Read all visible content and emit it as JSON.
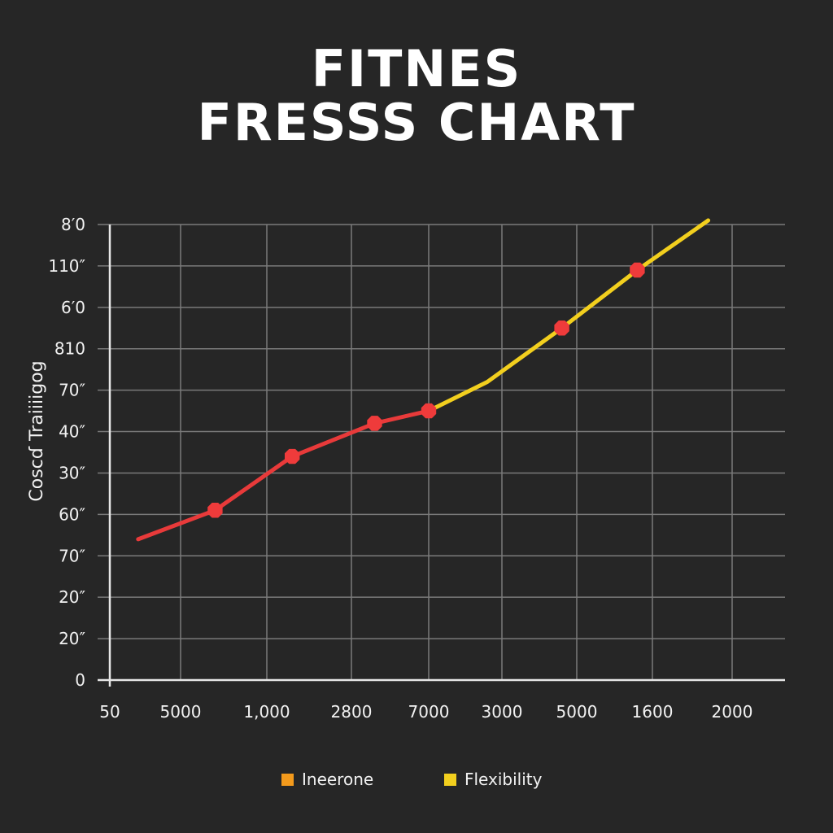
{
  "chart_data": {
    "type": "line",
    "title_line1": "FITNES",
    "title_line2": "FRESSS CHART",
    "ylabel": "Coscɗ Traiiiigog",
    "xlabel": "",
    "y_tick_labels": [
      "0",
      "20″",
      "20″",
      "70″",
      "60″",
      "30″",
      "40″",
      "70″",
      "810",
      "6′0",
      "110″",
      "8′0"
    ],
    "x_tick_labels": [
      "50",
      "5000",
      "1,000",
      "2800",
      "7000",
      "3000",
      "5000",
      "1600",
      "2000"
    ],
    "grid": true,
    "legend_position": "bottom",
    "series": [
      {
        "name": "Ineerone",
        "color": "#e83a3a",
        "swatch_color": "#f39a1c",
        "points": [
          [
            0.4,
            3.4
          ],
          [
            1.4,
            4.1
          ],
          [
            2.3,
            5.4
          ],
          [
            3.3,
            6.2
          ],
          [
            4.0,
            6.5
          ]
        ],
        "markers": [
          1,
          2,
          3,
          4
        ]
      },
      {
        "name": "Flexibility",
        "color": "#f2cf1e",
        "swatch_color": "#f2cf1e",
        "points": [
          [
            4.0,
            6.5
          ],
          [
            4.8,
            7.2
          ],
          [
            5.8,
            8.5
          ],
          [
            6.8,
            9.9
          ],
          [
            7.7,
            11.1
          ]
        ],
        "markers": [
          2,
          3
        ]
      }
    ],
    "marker_color": "#ef3b3b"
  }
}
